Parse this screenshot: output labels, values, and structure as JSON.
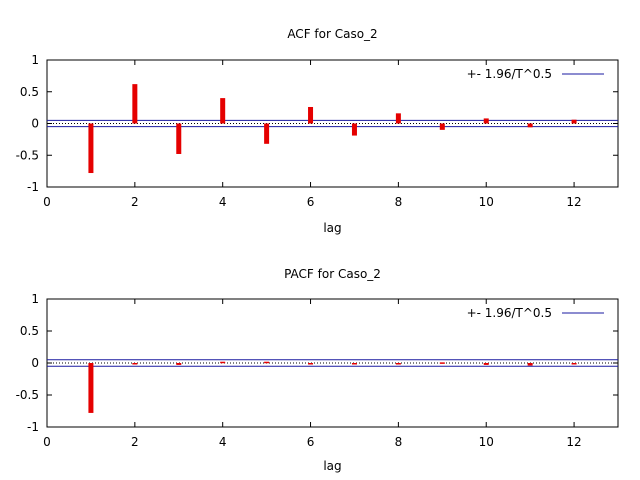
{
  "chart_data": [
    {
      "type": "bar",
      "title": "ACF for Caso_2",
      "xlabel": "lag",
      "ylabel": "",
      "xlim": [
        0,
        13
      ],
      "ylim": [
        -1,
        1
      ],
      "xticks": [
        "0",
        "2",
        "4",
        "6",
        "8",
        "10",
        "12"
      ],
      "yticks": [
        "1",
        "0.5",
        "0",
        "-0.5",
        "-1"
      ],
      "legend": {
        "label": "+- 1.96/T^0.5",
        "placement": "top-right"
      },
      "confidence_band": 0.05,
      "lags": [
        1,
        2,
        3,
        4,
        5,
        6,
        7,
        8,
        9,
        10,
        11,
        12
      ],
      "values": [
        -0.78,
        0.62,
        -0.48,
        0.4,
        -0.32,
        0.26,
        -0.19,
        0.16,
        -0.1,
        0.08,
        -0.06,
        0.06
      ],
      "series_color": "#e50000",
      "band_color": "#1a1aa0"
    },
    {
      "type": "bar",
      "title": "PACF for Caso_2",
      "xlabel": "lag",
      "ylabel": "",
      "xlim": [
        0,
        13
      ],
      "ylim": [
        -1,
        1
      ],
      "xticks": [
        "0",
        "2",
        "4",
        "6",
        "8",
        "10",
        "12"
      ],
      "yticks": [
        "1",
        "0.5",
        "0",
        "-0.5",
        "-1"
      ],
      "legend": {
        "label": "+- 1.96/T^0.5",
        "placement": "top-right"
      },
      "confidence_band": 0.05,
      "lags": [
        1,
        2,
        3,
        4,
        5,
        6,
        7,
        8,
        9,
        10,
        11,
        12
      ],
      "values": [
        -0.78,
        -0.01,
        -0.03,
        0.02,
        0.02,
        -0.01,
        -0.02,
        -0.01,
        0.01,
        -0.03,
        -0.04,
        0.0
      ],
      "series_color": "#e50000",
      "band_color": "#1a1aa0"
    }
  ]
}
